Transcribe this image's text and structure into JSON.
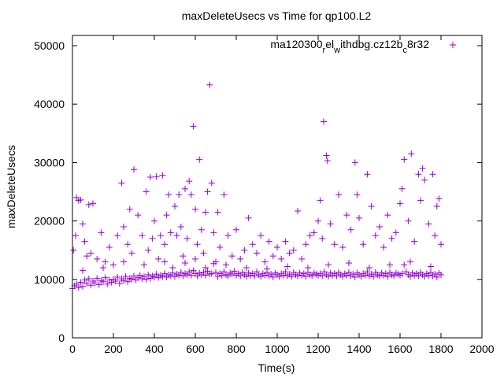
{
  "chart_data": {
    "type": "scatter",
    "title": "maxDeleteUsecs vs Time for qp100.L2",
    "xlabel": "Time(s)",
    "ylabel": "maxDeleteUsecs",
    "xlim": [
      0,
      2000
    ],
    "ylim": [
      0,
      51750
    ],
    "xticks": [
      0,
      200,
      400,
      600,
      800,
      1000,
      1200,
      1400,
      1600,
      1800,
      2000
    ],
    "yticks": [
      0,
      10000,
      20000,
      30000,
      40000,
      50000
    ],
    "grid": false,
    "legend": {
      "placement": "top-right",
      "label": "ma120300_rel_withdbg.cz12b_c8r32"
    },
    "series": [
      {
        "name": "ma120300_rel_withdbg.cz12b_c8r32",
        "color": "#9400d3",
        "marker": "plus",
        "baseline_x_start": 0,
        "baseline_x_step": 10,
        "baseline_y": [
          8400,
          8900,
          9200,
          8600,
          9500,
          8800,
          9900,
          9300,
          10100,
          9000,
          9700,
          9400,
          10200,
          9100,
          9800,
          9600,
          10300,
          9200,
          9900,
          9500,
          10000,
          9700,
          10400,
          9300,
          10100,
          9800,
          10500,
          9600,
          10200,
          10000,
          10600,
          9900,
          10300,
          10700,
          10100,
          10500,
          10000,
          10800,
          10200,
          10600,
          10400,
          10900,
          10300,
          10700,
          10500,
          11000,
          10400,
          10800,
          10600,
          11100,
          10500,
          10900,
          10700,
          11200,
          10600,
          11000,
          10800,
          11300,
          10700,
          11500,
          11000,
          10600,
          11100,
          10800,
          11200,
          10700,
          11400,
          10900,
          11000,
          12700,
          11200,
          10500,
          11000,
          10700,
          11300,
          10800,
          10600,
          11100,
          10900,
          11400,
          10700,
          11000,
          10600,
          11200,
          10800,
          10500,
          11100,
          10700,
          11000,
          10600,
          11300,
          10800,
          10500,
          11000,
          10700,
          11200,
          10600,
          10900,
          10400,
          11100,
          10800,
          10500,
          11000,
          10700,
          11300,
          10600,
          10900,
          10500,
          11200,
          10800,
          10600,
          11100,
          10700,
          11000,
          10500,
          11200,
          10800,
          10600,
          11100,
          10900,
          10700,
          11000,
          10600,
          11300,
          10800,
          10500,
          11100,
          10700,
          11000,
          10600,
          11200,
          10800,
          10500,
          11000,
          10700,
          11200,
          10600,
          10900,
          10400,
          11100,
          10800,
          10500,
          11000,
          10700,
          11300,
          10600,
          10900,
          10500,
          11200,
          10800,
          10600,
          11100,
          10700,
          11000,
          10500,
          11200,
          10800,
          10600,
          11100,
          10900,
          10700,
          11000,
          12500,
          11300,
          10800,
          10500,
          11100,
          10700,
          11000,
          10600,
          11200,
          10800,
          10500,
          11000,
          10700,
          11200,
          10600,
          10900,
          10400,
          11100,
          10800
        ],
        "points": [
          [
            5,
            15000
          ],
          [
            15,
            17500
          ],
          [
            20,
            24000
          ],
          [
            30,
            23500
          ],
          [
            40,
            23600
          ],
          [
            50,
            19500
          ],
          [
            60,
            16500
          ],
          [
            70,
            14000
          ],
          [
            80,
            22800
          ],
          [
            90,
            14500
          ],
          [
            100,
            23000
          ],
          [
            120,
            13500
          ],
          [
            140,
            18000
          ],
          [
            160,
            13000
          ],
          [
            180,
            15500
          ],
          [
            200,
            12500
          ],
          [
            220,
            17500
          ],
          [
            240,
            26500
          ],
          [
            250,
            19000
          ],
          [
            270,
            16000
          ],
          [
            280,
            22000
          ],
          [
            290,
            14500
          ],
          [
            300,
            28800
          ],
          [
            320,
            21000
          ],
          [
            340,
            17500
          ],
          [
            360,
            25000
          ],
          [
            370,
            15000
          ],
          [
            380,
            27500
          ],
          [
            390,
            17000
          ],
          [
            400,
            20000
          ],
          [
            410,
            27600
          ],
          [
            420,
            13500
          ],
          [
            430,
            17500
          ],
          [
            440,
            27800
          ],
          [
            450,
            16000
          ],
          [
            460,
            21000
          ],
          [
            470,
            24500
          ],
          [
            480,
            18000
          ],
          [
            490,
            12000
          ],
          [
            500,
            22500
          ],
          [
            510,
            17500
          ],
          [
            520,
            24500
          ],
          [
            530,
            19000
          ],
          [
            540,
            14000
          ],
          [
            550,
            25500
          ],
          [
            560,
            17000
          ],
          [
            570,
            26800
          ],
          [
            580,
            24500
          ],
          [
            590,
            36200
          ],
          [
            600,
            22000
          ],
          [
            610,
            16000
          ],
          [
            620,
            30500
          ],
          [
            630,
            18500
          ],
          [
            640,
            14500
          ],
          [
            650,
            21500
          ],
          [
            660,
            25000
          ],
          [
            670,
            43300
          ],
          [
            680,
            26500
          ],
          [
            690,
            18000
          ],
          [
            700,
            13000
          ],
          [
            710,
            21500
          ],
          [
            720,
            15500
          ],
          [
            740,
            24500
          ],
          [
            760,
            17500
          ],
          [
            780,
            14000
          ],
          [
            800,
            18500
          ],
          [
            820,
            13500
          ],
          [
            840,
            15000
          ],
          [
            860,
            20500
          ],
          [
            880,
            16000
          ],
          [
            900,
            14500
          ],
          [
            920,
            17500
          ],
          [
            940,
            13000
          ],
          [
            960,
            16500
          ],
          [
            980,
            14000
          ],
          [
            1000,
            15500
          ],
          [
            1020,
            13500
          ],
          [
            1040,
            16500
          ],
          [
            1060,
            14500
          ],
          [
            1080,
            15000
          ],
          [
            1100,
            21700
          ],
          [
            1120,
            13500
          ],
          [
            1140,
            16000
          ],
          [
            1160,
            17500
          ],
          [
            1180,
            18000
          ],
          [
            1200,
            20000
          ],
          [
            1210,
            23500
          ],
          [
            1220,
            17000
          ],
          [
            1227,
            37000
          ],
          [
            1240,
            31200
          ],
          [
            1245,
            30300
          ],
          [
            1260,
            19500
          ],
          [
            1280,
            16000
          ],
          [
            1300,
            24500
          ],
          [
            1320,
            15500
          ],
          [
            1340,
            21000
          ],
          [
            1360,
            18500
          ],
          [
            1380,
            30000
          ],
          [
            1390,
            24500
          ],
          [
            1400,
            20500
          ],
          [
            1420,
            16000
          ],
          [
            1440,
            28000
          ],
          [
            1460,
            22500
          ],
          [
            1480,
            17500
          ],
          [
            1500,
            19000
          ],
          [
            1520,
            15500
          ],
          [
            1540,
            21000
          ],
          [
            1560,
            17000
          ],
          [
            1580,
            18000
          ],
          [
            1600,
            23000
          ],
          [
            1610,
            25500
          ],
          [
            1620,
            30500
          ],
          [
            1640,
            20000
          ],
          [
            1655,
            31500
          ],
          [
            1670,
            16500
          ],
          [
            1690,
            28000
          ],
          [
            1700,
            23500
          ],
          [
            1710,
            29000
          ],
          [
            1720,
            27000
          ],
          [
            1740,
            19500
          ],
          [
            1760,
            28000
          ],
          [
            1770,
            17500
          ],
          [
            1780,
            22500
          ],
          [
            1790,
            23800
          ],
          [
            1800,
            16000
          ],
          [
            50,
            11500
          ],
          [
            150,
            12000
          ],
          [
            250,
            13000
          ],
          [
            350,
            12500
          ],
          [
            450,
            13000
          ],
          [
            550,
            12800
          ],
          [
            600,
            13500
          ],
          [
            650,
            12000
          ],
          [
            750,
            12500
          ],
          [
            850,
            12000
          ],
          [
            950,
            11800
          ],
          [
            1050,
            12200
          ],
          [
            1150,
            12000
          ],
          [
            1250,
            12500
          ],
          [
            1350,
            12800
          ],
          [
            1450,
            12000
          ],
          [
            1550,
            12500
          ],
          [
            1650,
            13000
          ],
          [
            1750,
            12200
          ]
        ]
      }
    ]
  }
}
